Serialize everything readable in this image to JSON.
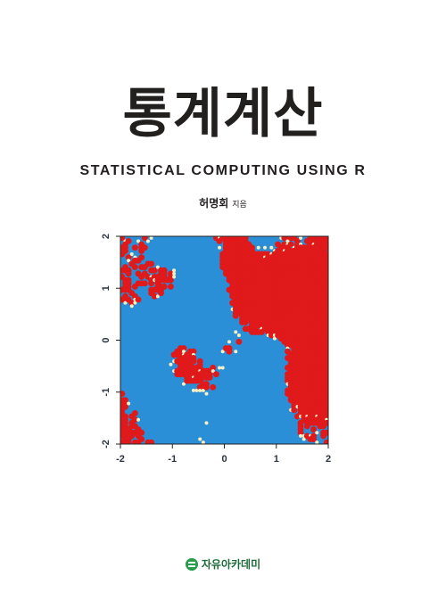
{
  "book": {
    "title": "통계계산",
    "subtitle": "STATISTICAL COMPUTING USING R",
    "author_name": "허명회",
    "author_role": "지음",
    "publisher": "자유아카데미"
  },
  "colors": {
    "red": "#e0191b",
    "blue": "#2a8fd6",
    "cream": "#f4efc4",
    "ink": "#231f20",
    "publisher_green": "#2a9d4a"
  },
  "chart_data": {
    "type": "heatmap",
    "title": "",
    "xlabel": "",
    "ylabel": "",
    "xlim": [
      -2,
      2
    ],
    "ylim": [
      -2,
      2
    ],
    "x_ticks": [
      "-2",
      "-1",
      "0",
      "1",
      "2"
    ],
    "y_ticks": [
      "-2",
      "-1",
      "0",
      "1",
      "2"
    ],
    "categories": [
      "red",
      "blue"
    ],
    "grid": false,
    "legend": "none"
  }
}
